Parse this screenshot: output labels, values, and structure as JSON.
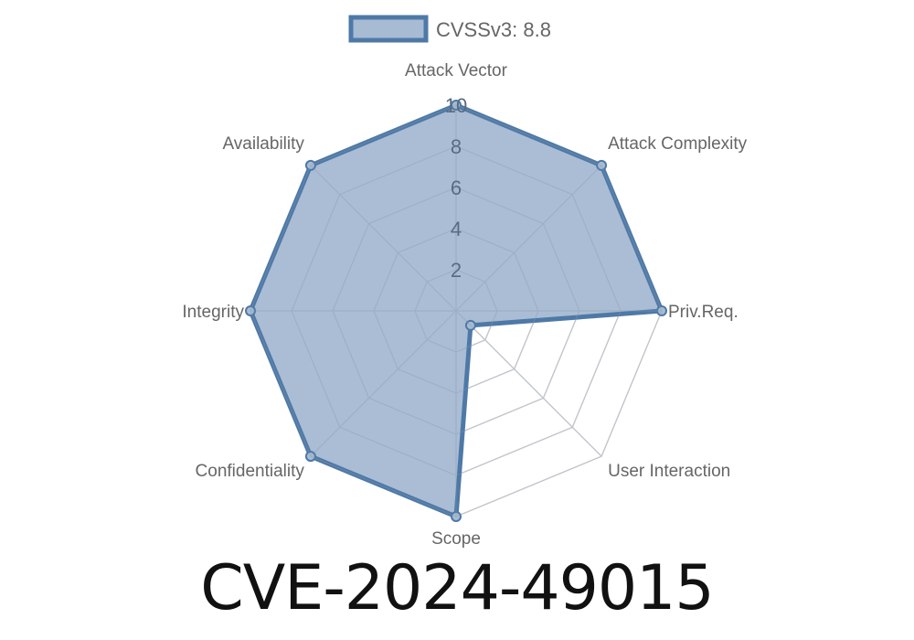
{
  "chart_data": {
    "type": "radar",
    "legend": {
      "label": "CVSSv3: 8.8",
      "placement": "top"
    },
    "axes": [
      "Attack Vector",
      "Attack Complexity",
      "Priv.Req.",
      "User Interaction",
      "Scope",
      "Confidentiality",
      "Integrity",
      "Availability"
    ],
    "series": [
      {
        "name": "CVSSv3: 8.8",
        "values": [
          10,
          10,
          10,
          1,
          10,
          10,
          10,
          10
        ]
      }
    ],
    "rlim": [
      0,
      10
    ],
    "ticks": [
      "2",
      "4",
      "6",
      "8",
      "10"
    ],
    "tick_values": [
      2,
      4,
      6,
      8,
      10
    ],
    "grid": true,
    "colors": {
      "line": "#4e79a7",
      "fill": "#a7bbd3",
      "grid": "#dddddd",
      "text": "#666666"
    }
  },
  "footer": {
    "title": "CVE-2024-49015"
  }
}
